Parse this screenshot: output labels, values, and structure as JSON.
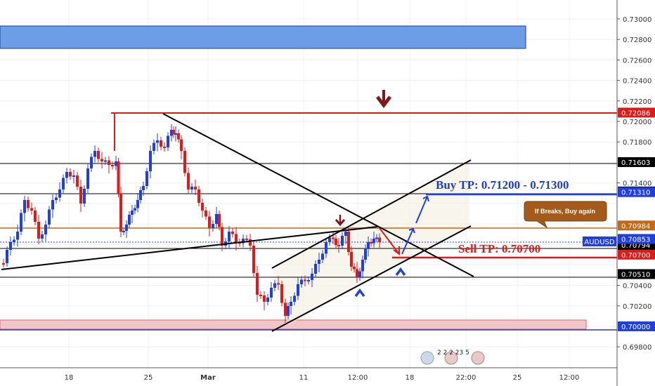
{
  "chart_data": {
    "type": "candlestick",
    "symbol": "AUDUSD",
    "current_price": "0.70853",
    "y_axis_ticks": [
      "0.73000",
      "0.72800",
      "0.72600",
      "0.72400",
      "0.72200",
      "0.72000",
      "0.71800",
      "0.71400",
      "0.70400",
      "0.70200",
      "0.69800"
    ],
    "x_axis_ticks": [
      "18",
      "25",
      "Mar",
      "11",
      "12:00",
      "18",
      "22:00",
      "25",
      "12:00"
    ],
    "price_levels": [
      {
        "label": "0.72086",
        "value": 0.72086,
        "color": "#e01919"
      },
      {
        "label": "0.71603",
        "value": 0.71603,
        "color": "#000000"
      },
      {
        "label": "0.71316",
        "value": 0.71316,
        "color": "#000000"
      },
      {
        "label": "0.71310",
        "value": 0.7131,
        "color": "#1f3fe0"
      },
      {
        "label": "0.70984",
        "value": 0.70984,
        "color": "#c26a1a"
      },
      {
        "label": "0.70794",
        "value": 0.70794,
        "color": "#000000"
      },
      {
        "label": "0.70700",
        "value": 0.707,
        "color": "#e01919"
      },
      {
        "label": "0.70510",
        "value": 0.7051,
        "color": "#000000"
      },
      {
        "label": "0.70000",
        "value": 0.7,
        "color": "#1f3fe0"
      }
    ],
    "annotations": {
      "buy_tp": "Buy TP: 0.71200 - 0.71300",
      "sell_tp": "Sell TP:  0.70700",
      "callout": "If Breaks, Buy again"
    },
    "zones": [
      {
        "name": "supply-zone",
        "from": 0.7275,
        "to": 0.7294,
        "color": "#6e9de8"
      },
      {
        "name": "demand-zone",
        "from": 0.6999,
        "to": 0.7008,
        "color": "#f2c6c8"
      }
    ],
    "events_badge": "2  2 2 23 5"
  }
}
